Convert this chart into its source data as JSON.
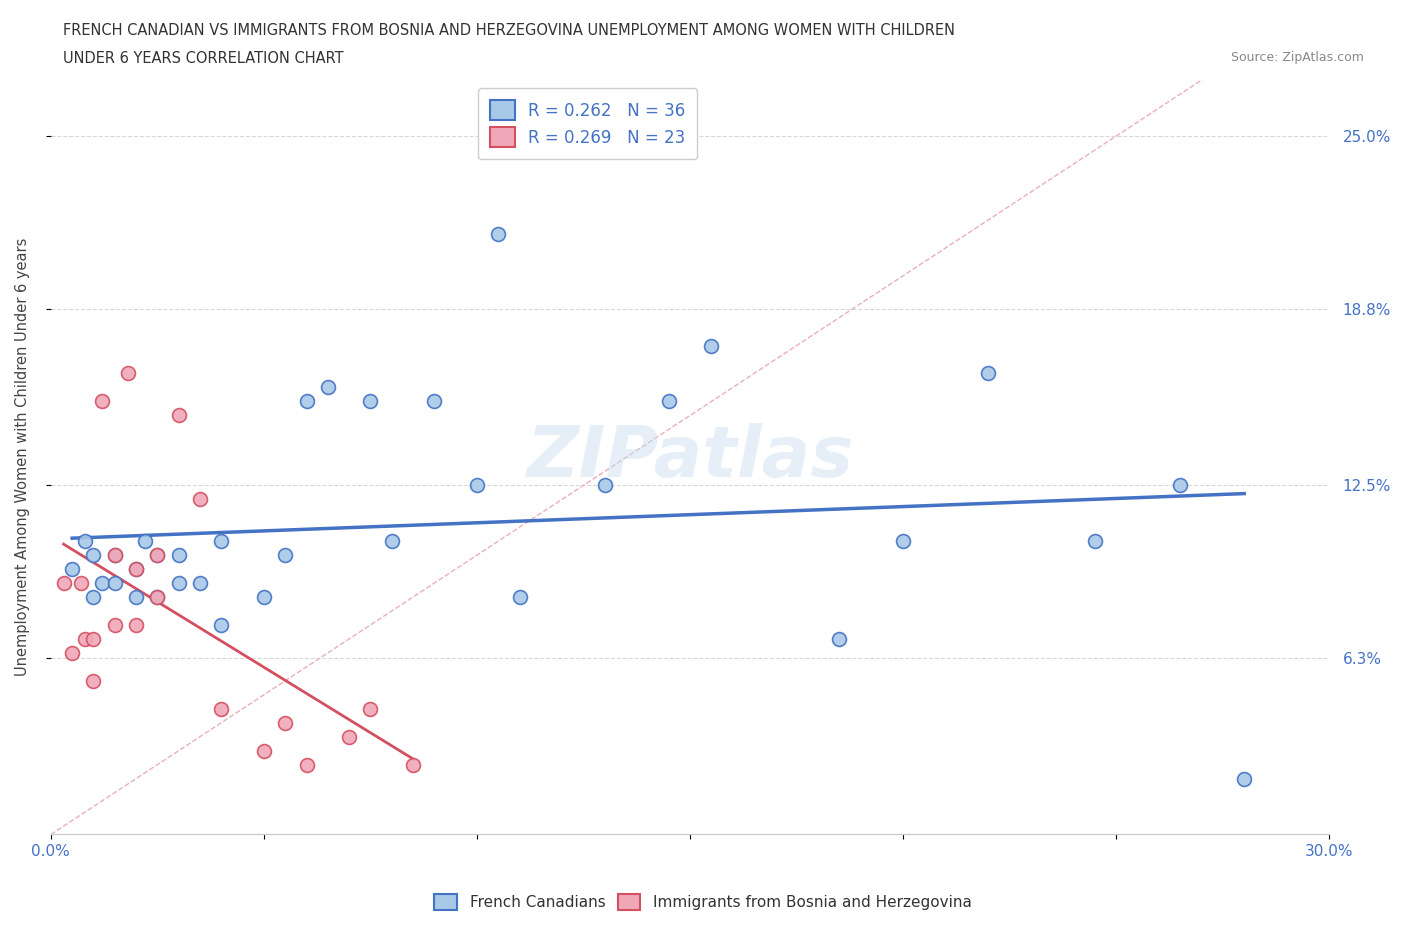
{
  "title_line1": "FRENCH CANADIAN VS IMMIGRANTS FROM BOSNIA AND HERZEGOVINA UNEMPLOYMENT AMONG WOMEN WITH CHILDREN",
  "title_line2": "UNDER 6 YEARS CORRELATION CHART",
  "source_text": "Source: ZipAtlas.com",
  "ylabel": "Unemployment Among Women with Children Under 6 years",
  "xlim": [
    0.0,
    0.3
  ],
  "ylim": [
    0.0,
    0.27
  ],
  "xticks": [
    0.0,
    0.05,
    0.1,
    0.15,
    0.2,
    0.25,
    0.3
  ],
  "xticklabels": [
    "0.0%",
    "",
    "",
    "",
    "",
    "",
    "30.0%"
  ],
  "ytick_positions": [
    0.063,
    0.125,
    0.188,
    0.25
  ],
  "ytick_labels": [
    "6.3%",
    "12.5%",
    "18.8%",
    "25.0%"
  ],
  "blue_R": 0.262,
  "blue_N": 36,
  "pink_R": 0.269,
  "pink_N": 23,
  "blue_color": "#A8C8E8",
  "pink_color": "#F0A8B8",
  "trend_blue_color": "#4472C4",
  "trend_pink_color": "#D45060",
  "ref_line_color": "#D0B0B8",
  "background_color": "#ffffff",
  "legend_label_blue": "French Canadians",
  "legend_label_pink": "Immigrants from Bosnia and Herzegovina",
  "blue_scatter_x": [
    0.005,
    0.008,
    0.01,
    0.01,
    0.012,
    0.015,
    0.015,
    0.02,
    0.02,
    0.022,
    0.025,
    0.025,
    0.03,
    0.03,
    0.035,
    0.04,
    0.04,
    0.05,
    0.055,
    0.06,
    0.065,
    0.075,
    0.08,
    0.09,
    0.1,
    0.105,
    0.11,
    0.13,
    0.145,
    0.155,
    0.185,
    0.2,
    0.22,
    0.245,
    0.265,
    0.28
  ],
  "blue_scatter_y": [
    0.095,
    0.105,
    0.085,
    0.1,
    0.09,
    0.09,
    0.1,
    0.085,
    0.095,
    0.105,
    0.085,
    0.1,
    0.09,
    0.1,
    0.09,
    0.075,
    0.105,
    0.085,
    0.1,
    0.155,
    0.16,
    0.155,
    0.105,
    0.155,
    0.125,
    0.215,
    0.085,
    0.125,
    0.155,
    0.175,
    0.07,
    0.105,
    0.165,
    0.105,
    0.125,
    0.02
  ],
  "pink_scatter_x": [
    0.003,
    0.005,
    0.007,
    0.008,
    0.01,
    0.01,
    0.012,
    0.015,
    0.015,
    0.018,
    0.02,
    0.02,
    0.025,
    0.025,
    0.03,
    0.035,
    0.04,
    0.05,
    0.055,
    0.06,
    0.07,
    0.075,
    0.085
  ],
  "pink_scatter_y": [
    0.09,
    0.065,
    0.09,
    0.07,
    0.055,
    0.07,
    0.155,
    0.1,
    0.075,
    0.165,
    0.075,
    0.095,
    0.085,
    0.1,
    0.15,
    0.12,
    0.045,
    0.03,
    0.04,
    0.025,
    0.035,
    0.045,
    0.025
  ],
  "watermark_text": "ZIPatlas",
  "marker_size": 100,
  "marker_linewidth": 1.2
}
